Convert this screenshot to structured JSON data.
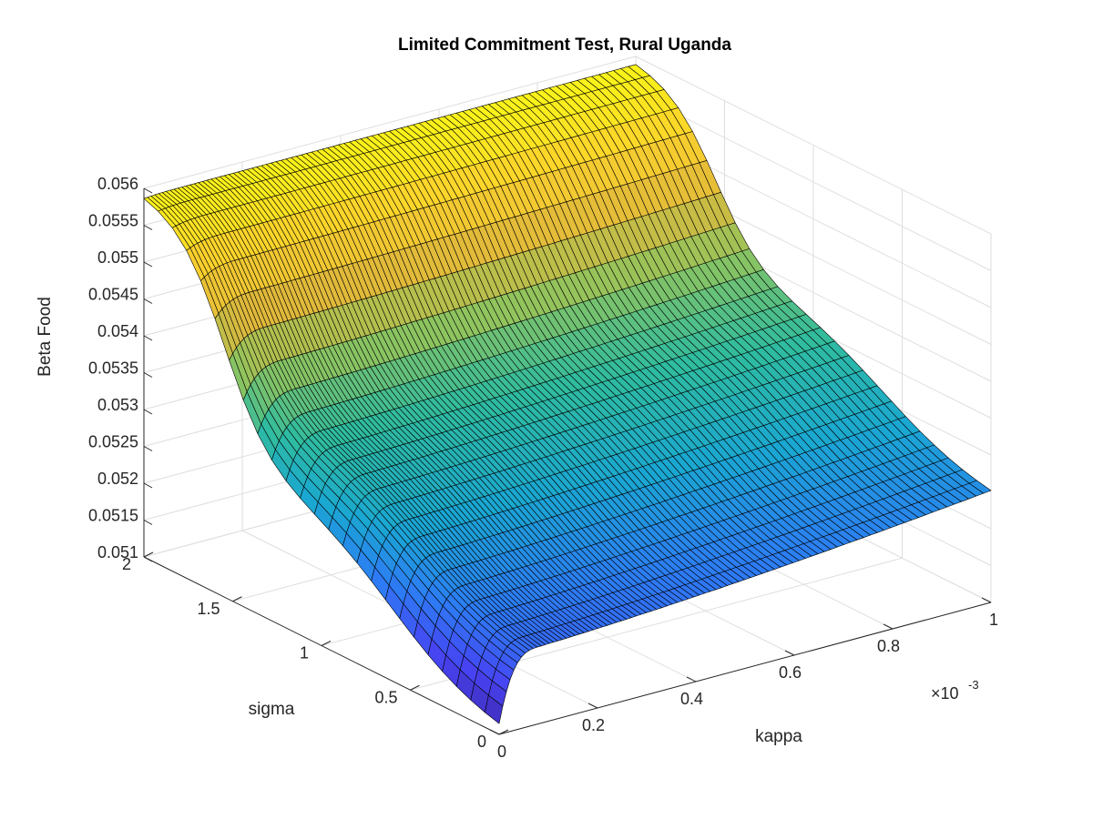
{
  "chart_data": {
    "type": "surface",
    "title": "Limited Commitment Test, Rural Uganda",
    "xlabel": "kappa",
    "ylabel": "sigma",
    "zlabel": "Beta Food",
    "x_exponent_label": "×10",
    "x_exponent_power": "-3",
    "xlim": [
      0,
      1
    ],
    "ylim": [
      0,
      2
    ],
    "zlim": [
      0.051,
      0.056
    ],
    "x_ticks": [
      "0",
      "0.2",
      "0.4",
      "0.6",
      "0.8",
      "1"
    ],
    "y_ticks": [
      "0",
      "0.5",
      "1",
      "1.5",
      "2"
    ],
    "z_ticks": [
      "0.051",
      "0.0515",
      "0.052",
      "0.0525",
      "0.053",
      "0.0535",
      "0.054",
      "0.0545",
      "0.055",
      "0.0555",
      "0.056"
    ],
    "grid": true,
    "colormap": "parula",
    "colormap_stops": [
      "#3e26a8",
      "#4743f2",
      "#2d7cf4",
      "#1aa7d2",
      "#2fbc9f",
      "#8fc45e",
      "#e0b93b",
      "#fcd22c",
      "#f9fb15"
    ],
    "edge_color": "#000000",
    "surface_notes": [
      {
        "kappa": 0.0,
        "sigma": 2.0,
        "beta_food": 0.05596
      },
      {
        "kappa": 1.0,
        "sigma": 2.0,
        "beta_food": 0.05596
      },
      {
        "kappa": 1.0,
        "sigma": 1.2,
        "beta_food": 0.0548
      },
      {
        "kappa": 1.0,
        "sigma": 0.8,
        "beta_food": 0.0532
      },
      {
        "kappa": 1.0,
        "sigma": 0.4,
        "beta_food": 0.0522
      },
      {
        "kappa": 0.03,
        "sigma": 0.2,
        "beta_food": 0.0509
      }
    ]
  }
}
